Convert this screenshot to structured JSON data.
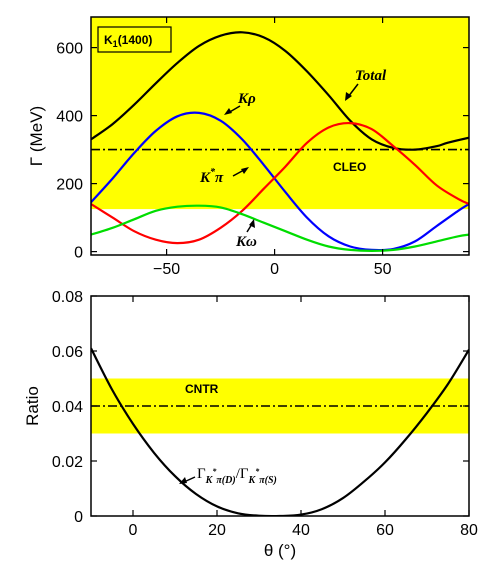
{
  "chart_data": [
    {
      "type": "line",
      "panel": "top",
      "ylabel": "Γ (MeV)",
      "xlabel": "",
      "xlim": [
        -85,
        90
      ],
      "ylim": [
        -10,
        690
      ],
      "xticks": [
        -50,
        0,
        50
      ],
      "yticks": [
        0,
        200,
        400,
        600
      ],
      "grid": false,
      "band": {
        "label": "CLEO",
        "y_range": [
          125,
          690
        ],
        "color": "#ffff00"
      },
      "reference_line": {
        "y": 300,
        "style": "dash-dot"
      },
      "inset_label": {
        "main": "K",
        "sub": "1",
        "tail": "(1400)"
      },
      "series": [
        {
          "name": "Total",
          "color": "#000000",
          "x": [
            -85,
            -75,
            -65,
            -55,
            -45,
            -35,
            -25,
            -15,
            -5,
            5,
            15,
            25,
            35,
            45,
            55,
            65,
            75,
            80,
            90
          ],
          "y": [
            330,
            375,
            432,
            495,
            555,
            605,
            635,
            645,
            630,
            590,
            530,
            460,
            385,
            330,
            305,
            300,
            310,
            320,
            335
          ]
        },
        {
          "name": "Kρ",
          "color": "#0000ff",
          "x": [
            -85,
            -75,
            -65,
            -55,
            -45,
            -35,
            -25,
            -15,
            -5,
            5,
            15,
            25,
            35,
            45,
            55,
            65,
            75,
            85,
            90
          ],
          "y": [
            145,
            215,
            290,
            355,
            398,
            408,
            385,
            330,
            255,
            175,
            100,
            45,
            15,
            5,
            8,
            30,
            75,
            120,
            140
          ]
        },
        {
          "name": "K*π",
          "color": "#ff0000",
          "x": [
            -85,
            -75,
            -65,
            -55,
            -45,
            -35,
            -25,
            -15,
            -5,
            5,
            15,
            25,
            35,
            45,
            55,
            65,
            75,
            85,
            90
          ],
          "y": [
            140,
            100,
            60,
            35,
            25,
            35,
            70,
            120,
            185,
            250,
            320,
            365,
            378,
            360,
            310,
            255,
            195,
            155,
            140
          ]
        },
        {
          "name": "Kω",
          "color": "#00dd00",
          "x": [
            -85,
            -75,
            -65,
            -55,
            -45,
            -35,
            -25,
            -15,
            -5,
            5,
            15,
            25,
            35,
            45,
            55,
            65,
            75,
            85,
            90
          ],
          "y": [
            50,
            70,
            95,
            120,
            132,
            135,
            130,
            110,
            85,
            60,
            35,
            15,
            5,
            2,
            5,
            15,
            30,
            45,
            50
          ]
        }
      ]
    },
    {
      "type": "line",
      "panel": "bottom",
      "ylabel": "Ratio",
      "xlabel": "θ (°)",
      "xlim": [
        -10,
        80
      ],
      "ylim": [
        0,
        0.08
      ],
      "xticks": [
        0,
        20,
        40,
        60,
        80
      ],
      "yticks": [
        0,
        0.02,
        0.04,
        0.06,
        0.08
      ],
      "ytick_labels": [
        "0",
        "0.02",
        "0.04",
        "0.06",
        "0.08"
      ],
      "grid": false,
      "band": {
        "label": "CNTR",
        "y_range": [
          0.03,
          0.05
        ],
        "color": "#ffff00"
      },
      "reference_line": {
        "y": 0.04,
        "style": "dash-dot"
      },
      "series": [
        {
          "name": "Γ_K*π(D)/Γ_K*π(S)",
          "color": "#000000",
          "x": [
            -10,
            -5,
            0,
            5,
            10,
            15,
            20,
            25,
            30,
            35,
            40,
            45,
            50,
            55,
            60,
            65,
            70,
            75,
            80
          ],
          "y": [
            0.061,
            0.046,
            0.0335,
            0.023,
            0.0145,
            0.008,
            0.0035,
            0.001,
            0.0001,
            0.0,
            0.0005,
            0.0025,
            0.0065,
            0.0125,
            0.0195,
            0.028,
            0.0375,
            0.048,
            0.0605
          ]
        }
      ]
    }
  ],
  "annotations": {
    "total": "Total",
    "krho": "Kρ",
    "kstarpi_base": "K",
    "kstarpi_sup": "*",
    "kstarpi_tail": "π",
    "komega": "Kω",
    "ratio_gamma1": "Γ",
    "ratio_sub1": "K",
    "ratio_sup1": "*",
    "ratio_sub1_tail": "π(D)",
    "ratio_slash": "/Γ",
    "ratio_sub2": "K",
    "ratio_sup2": "*",
    "ratio_sub2_tail": "π(S)"
  }
}
